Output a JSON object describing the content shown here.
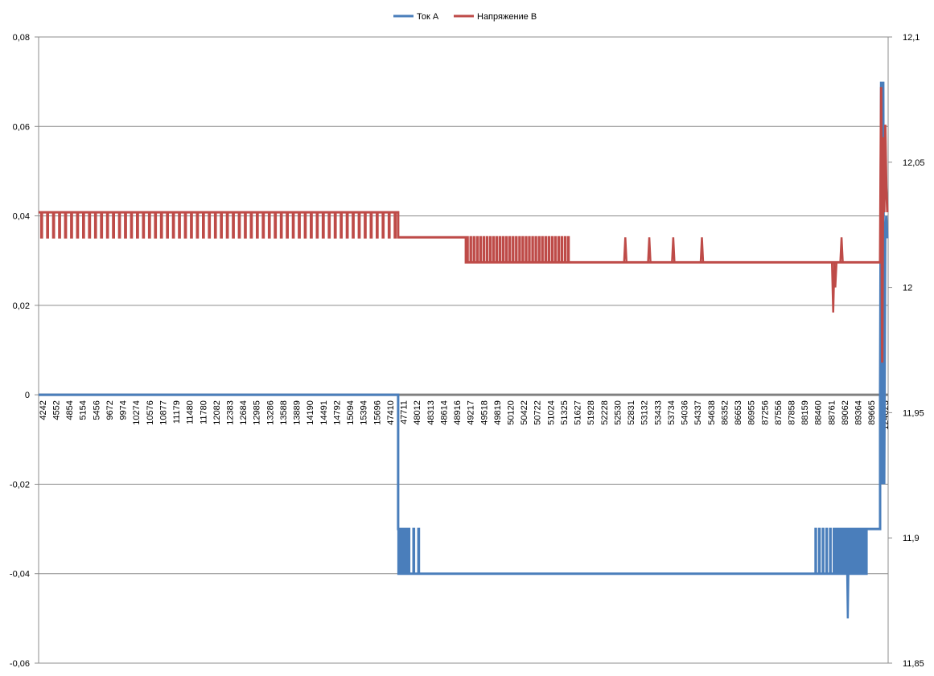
{
  "chart_data": {
    "type": "line",
    "title": "",
    "grid": true,
    "legend_position": "top-center",
    "y_left": {
      "min": -0.06,
      "max": 0.08,
      "step": 0.02,
      "tick_labels": [
        "-0,06",
        "-0,04",
        "-0,02",
        "0",
        "0,02",
        "0,04",
        "0,06",
        "0,08"
      ]
    },
    "y_right": {
      "min": 11.85,
      "max": 12.1,
      "step": 0.05,
      "tick_labels": [
        "11,85",
        "11,9",
        "11,95",
        "12",
        "12,05",
        "12,1"
      ]
    },
    "x_tick_labels": [
      "4242",
      "4552",
      "4854",
      "5154",
      "5456",
      "9672",
      "9974",
      "10274",
      "10576",
      "10877",
      "11179",
      "11480",
      "11780",
      "12082",
      "12383",
      "12684",
      "12985",
      "13286",
      "13588",
      "13889",
      "14190",
      "14491",
      "14792",
      "15094",
      "15394",
      "15696",
      "47410",
      "47711",
      "48012",
      "48313",
      "48614",
      "48916",
      "49217",
      "49518",
      "49819",
      "50120",
      "50422",
      "50722",
      "51024",
      "51325",
      "51627",
      "51928",
      "52228",
      "52530",
      "52831",
      "53132",
      "53433",
      "53734",
      "54036",
      "54337",
      "54638",
      "86352",
      "86653",
      "86955",
      "87256",
      "87556",
      "87858",
      "88159",
      "88460",
      "88761",
      "89062",
      "89364",
      "89665",
      "124023"
    ],
    "series": [
      {
        "name": "Ток А",
        "axis": "left",
        "color": "#4a7ebb",
        "segments": [
          {
            "from": 0.0,
            "to": 0.69,
            "value": 0.0
          },
          {
            "from": 0.69,
            "to": 0.706,
            "value": -0.03,
            "osc": -0.04,
            "n": 10
          },
          {
            "from": 0.706,
            "to": 0.734,
            "value": -0.04,
            "osc": -0.03,
            "n": 3
          },
          {
            "from": 0.734,
            "to": 1.488,
            "value": -0.04
          },
          {
            "from": 1.488,
            "to": 1.53,
            "value": -0.04,
            "osc": -0.03,
            "n": 6
          },
          {
            "from": 1.53,
            "to": 1.59,
            "value": -0.03,
            "osc": -0.04,
            "n": 24
          },
          {
            "from": 1.59,
            "to": 1.615,
            "value": -0.03
          }
        ],
        "spikes": [
          {
            "at": 1.553,
            "value": -0.05
          }
        ],
        "tail": [
          0.0,
          0.07,
          -0.02,
          0.07,
          -0.02,
          0.035,
          0.04,
          0.035
        ]
      },
      {
        "name": "Напряжение В",
        "axis": "right",
        "color": "#be4b48",
        "segments": [
          {
            "from": 0.0,
            "to": 0.69,
            "value": 12.03,
            "osc": 12.02,
            "n": 60
          },
          {
            "from": 0.69,
            "to": 0.82,
            "value": 12.02
          },
          {
            "from": 0.82,
            "to": 1.02,
            "value": 12.01,
            "osc": 12.02,
            "n": 32
          },
          {
            "from": 1.02,
            "to": 1.58,
            "value": 12.01
          },
          {
            "from": 1.58,
            "to": 1.615,
            "value": 12.01
          }
        ],
        "spikes": [
          {
            "at": 1.126,
            "value": 12.02
          },
          {
            "at": 1.172,
            "value": 12.02
          },
          {
            "at": 1.218,
            "value": 12.02
          },
          {
            "at": 1.273,
            "value": 12.02
          },
          {
            "at": 1.525,
            "value": 11.99
          },
          {
            "at": 1.529,
            "value": 12.0
          },
          {
            "at": 1.541,
            "value": 12.02
          }
        ],
        "tail": [
          12.01,
          12.08,
          11.97,
          12.06,
          12.03,
          12.065,
          12.04,
          12.03
        ]
      }
    ]
  }
}
